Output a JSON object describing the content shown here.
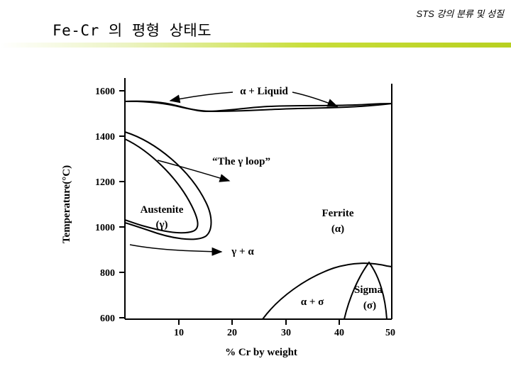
{
  "header": {
    "tag": "STS 강의 분류 및 성질",
    "title": "Fe-Cr 의 평형 상태도"
  },
  "diagram": {
    "y_axis": {
      "title": "Temperature(°C)",
      "ticks": [
        "1600",
        "1400",
        "1200",
        "1000",
        "800",
        "600"
      ]
    },
    "x_axis": {
      "title": "% Cr by weight",
      "ticks": [
        "10",
        "20",
        "30",
        "40",
        "50"
      ]
    },
    "labels": {
      "alpha_liquid": "α + Liquid",
      "gamma_loop": "“The γ loop”",
      "austenite_name": "Austenite",
      "austenite_symbol": "(γ)",
      "ferrite_name": "Ferrite",
      "ferrite_symbol": "(α)",
      "gamma_alpha": "γ + α",
      "alpha_sigma": "α + σ",
      "sigma_name": "Sigma",
      "sigma_symbol": "(σ)"
    }
  }
}
